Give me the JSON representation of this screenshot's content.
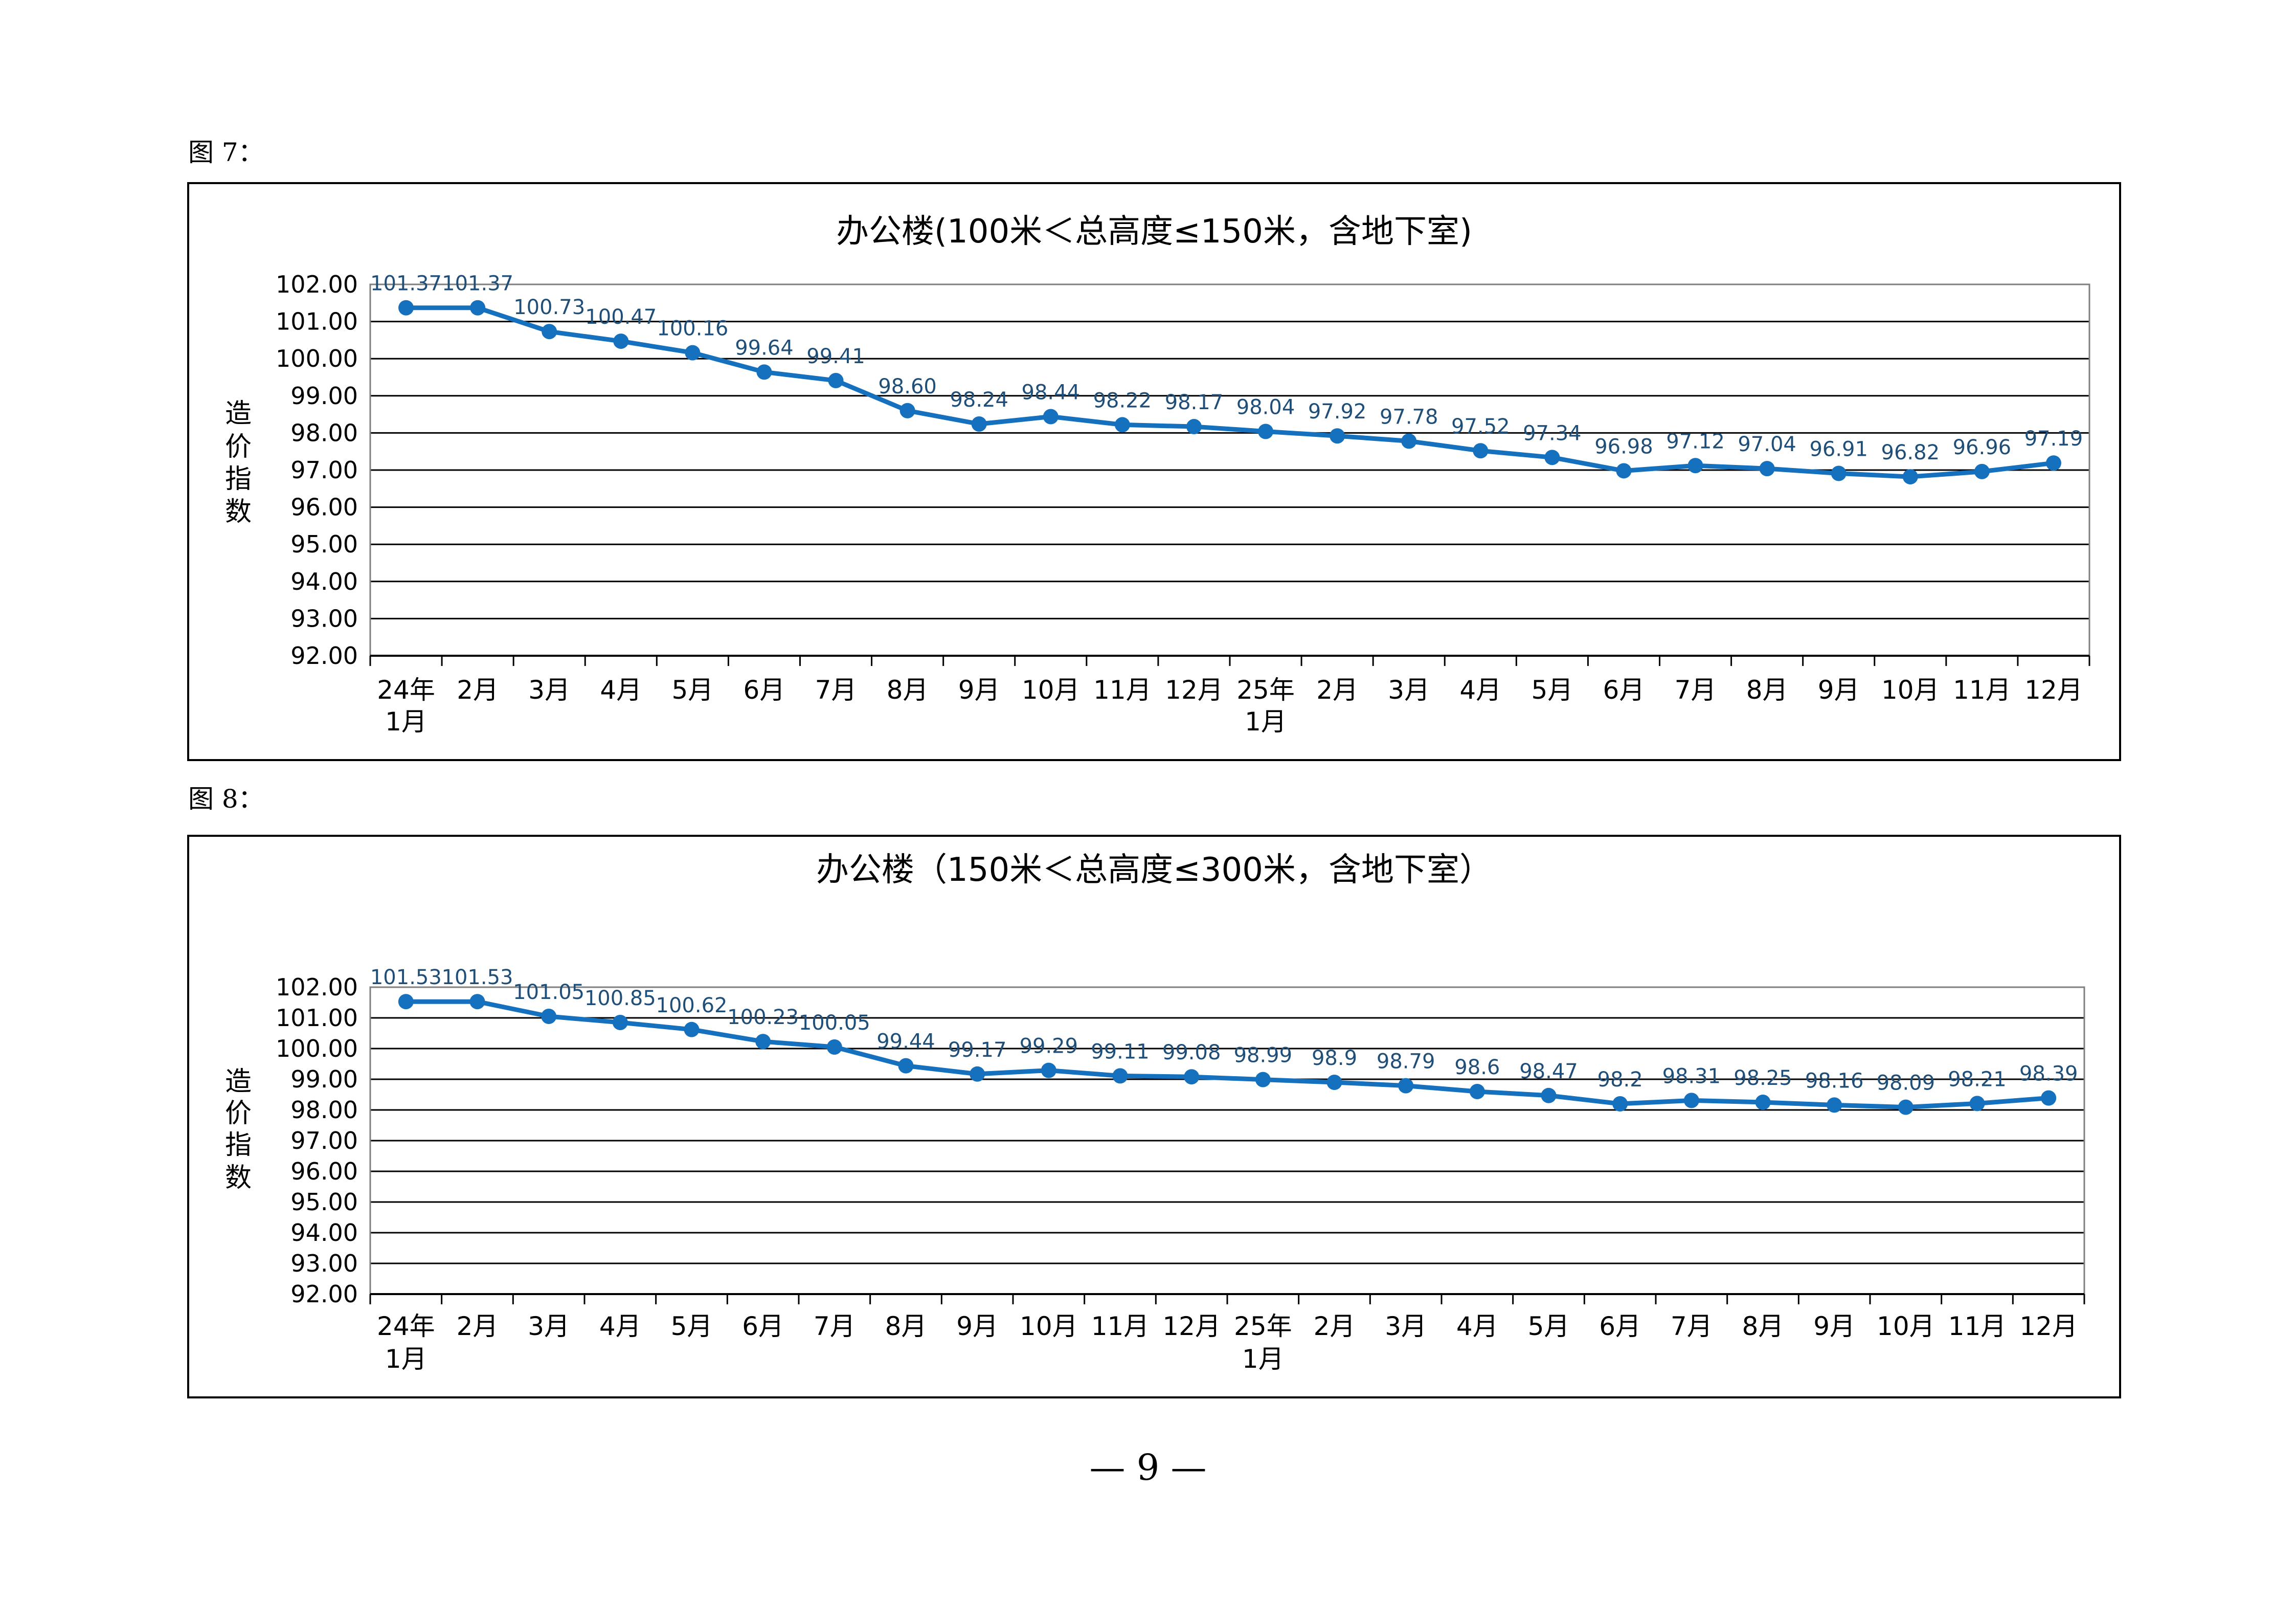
{
  "page": {
    "figure_labels": [
      "图 7：",
      "图 8："
    ],
    "page_number": "— 9 —"
  },
  "chart_data": [
    {
      "type": "line",
      "title": "办公楼(100米＜总高度≤150米，含地下室)",
      "ylabel": "造价指数",
      "xlabel": "",
      "categories": [
        "24年\n1月",
        "2月",
        "3月",
        "4月",
        "5月",
        "6月",
        "7月",
        "8月",
        "9月",
        "10月",
        "11月",
        "12月",
        "25年\n1月",
        "2月",
        "3月",
        "4月",
        "5月",
        "6月",
        "7月",
        "8月",
        "9月",
        "10月",
        "11月",
        "12月"
      ],
      "series": [
        {
          "values": [
            101.37,
            101.37,
            100.73,
            100.47,
            100.16,
            99.64,
            99.41,
            98.6,
            98.24,
            98.44,
            98.22,
            98.17,
            98.04,
            97.92,
            97.78,
            97.52,
            97.34,
            96.98,
            97.12,
            97.04,
            96.91,
            96.82,
            96.96,
            97.19
          ],
          "labels": [
            "101.37",
            "101.37",
            "100.73",
            "100.47",
            "100.16",
            "99.64",
            "99.41",
            "98.60",
            "98.24",
            "98.44",
            "98.22",
            "98.17",
            "98.04",
            "97.92",
            "97.78",
            "97.52",
            "97.34",
            "96.98",
            "97.12",
            "97.04",
            "96.91",
            "96.82",
            "96.96",
            "97.19"
          ]
        }
      ],
      "ylim": [
        92,
        102
      ],
      "yticks": [
        "92.00",
        "93.00",
        "94.00",
        "95.00",
        "96.00",
        "97.00",
        "98.00",
        "99.00",
        "100.00",
        "101.00",
        "102.00"
      ],
      "grid": true,
      "legend": "none",
      "colors": {
        "line": "#1570BE",
        "label": "#1F4E79"
      }
    },
    {
      "type": "line",
      "title": "办公楼（150米＜总高度≤300米，含地下室）",
      "ylabel": "造价指数",
      "xlabel": "",
      "categories": [
        "24年\n1月",
        "2月",
        "3月",
        "4月",
        "5月",
        "6月",
        "7月",
        "8月",
        "9月",
        "10月",
        "11月",
        "12月",
        "25年\n1月",
        "2月",
        "3月",
        "4月",
        "5月",
        "6月",
        "7月",
        "8月",
        "9月",
        "10月",
        "11月",
        "12月"
      ],
      "series": [
        {
          "values": [
            101.53,
            101.53,
            101.05,
            100.85,
            100.62,
            100.23,
            100.05,
            99.44,
            99.17,
            99.29,
            99.11,
            99.08,
            98.99,
            98.9,
            98.79,
            98.6,
            98.47,
            98.2,
            98.31,
            98.25,
            98.16,
            98.09,
            98.21,
            98.39
          ],
          "labels": [
            "101.53",
            "101.53",
            "101.05",
            "100.85",
            "100.62",
            "100.23",
            "100.05",
            "99.44",
            "99.17",
            "99.29",
            "99.11",
            "99.08",
            "98.99",
            "98.9",
            "98.79",
            "98.6",
            "98.47",
            "98.2",
            "98.31",
            "98.25",
            "98.16",
            "98.09",
            "98.21",
            "98.39"
          ]
        }
      ],
      "ylim": [
        92,
        102
      ],
      "yticks": [
        "92.00",
        "93.00",
        "94.00",
        "95.00",
        "96.00",
        "97.00",
        "98.00",
        "99.00",
        "100.00",
        "101.00",
        "102.00"
      ],
      "grid": true,
      "legend": "none",
      "colors": {
        "line": "#1570BE",
        "label": "#1F4E79"
      }
    }
  ]
}
